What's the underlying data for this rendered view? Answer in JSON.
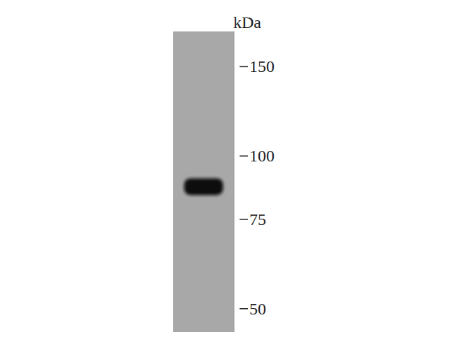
{
  "chart_data": {
    "type": "blot",
    "y_label": "kDa",
    "categories": [
      null
    ],
    "values": [
      87
    ],
    "color": "#111111",
    "log": "y",
    "ylim": [
      45,
      176
    ],
    "yticks": [
      150,
      100,
      75,
      50
    ]
  }
}
